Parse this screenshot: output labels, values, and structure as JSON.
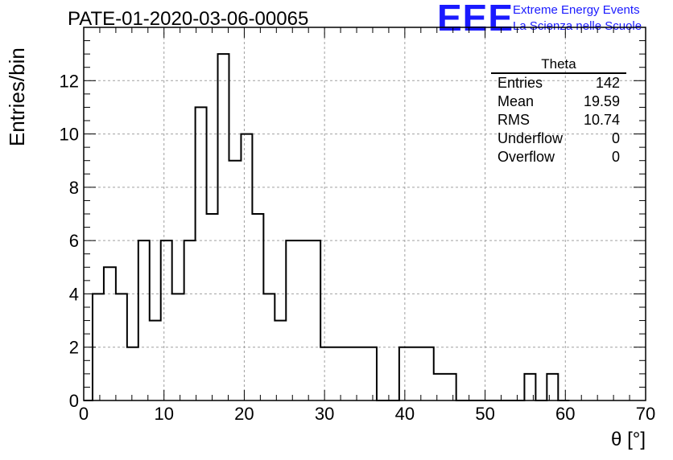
{
  "header": {
    "title": "PATE-01-2020-03-06-00065"
  },
  "logo": {
    "mark": "EEE",
    "line1": "Extreme Energy Events",
    "line2": "La Scienza nelle Scuole",
    "color": "#1a1aff"
  },
  "stats": {
    "title": "Theta",
    "rows": [
      {
        "label": "Entries",
        "value": "142"
      },
      {
        "label": "Mean",
        "value": "19.59"
      },
      {
        "label": "RMS",
        "value": "10.74"
      },
      {
        "label": "Underflow",
        "value": "0"
      },
      {
        "label": "Overflow",
        "value": "0"
      }
    ]
  },
  "chart_data": {
    "type": "bar",
    "title": "PATE-01-2020-03-06-00065",
    "xlabel": "θ [°]",
    "ylabel": "Entries/bin",
    "xlim": [
      0,
      70
    ],
    "ylim": [
      0,
      14
    ],
    "grid": true,
    "legend": "top-right",
    "bin_edges": [
      0,
      1.1,
      2.5,
      4.0,
      5.4,
      6.8,
      8.2,
      9.6,
      11.0,
      12.5,
      13.9,
      15.3,
      16.7,
      18.1,
      19.6,
      21.0,
      22.4,
      23.8,
      25.2,
      26.6,
      28.0,
      29.5,
      30.9,
      32.3,
      33.7,
      35.1,
      36.5,
      37.9,
      39.3,
      40.8,
      42.2,
      43.6,
      45.0,
      46.4,
      47.8,
      49.2,
      50.6,
      52.1,
      53.5,
      54.9,
      56.3,
      57.7,
      59.1,
      60.5
    ],
    "values": [
      0,
      4,
      5,
      4,
      2,
      6,
      3,
      6,
      4,
      6,
      11,
      7,
      13,
      9,
      10,
      7,
      4,
      3,
      6,
      6,
      6,
      2,
      2,
      2,
      2,
      2,
      0,
      0,
      2,
      2,
      2,
      1,
      1,
      0,
      0,
      0,
      0,
      0,
      0,
      1,
      0,
      1,
      0
    ],
    "xticks": [
      0,
      10,
      20,
      30,
      40,
      50,
      60,
      70
    ],
    "yticks": [
      0,
      2,
      4,
      6,
      8,
      10,
      12
    ],
    "colors": {
      "line": "#000000",
      "grid": "#a0a0a0"
    }
  }
}
